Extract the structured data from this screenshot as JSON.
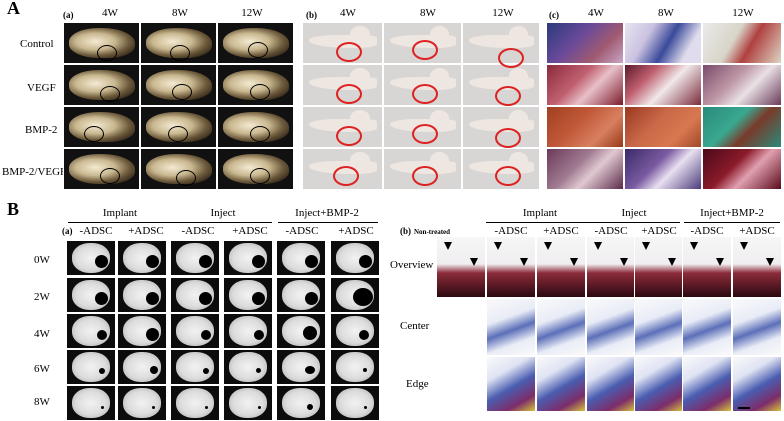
{
  "panel_a": {
    "label": "A",
    "sub_a": "(a)",
    "sub_b": "(b)",
    "sub_c": "(c)",
    "timepoints": [
      "4W",
      "8W",
      "12W"
    ],
    "rows": [
      "Control",
      "VEGF",
      "BMP-2",
      "BMP-2/VEGF"
    ]
  },
  "panel_b": {
    "label": "B",
    "sub_a": "(a)",
    "groups": [
      "Implant",
      "Inject",
      "Inject+BMP-2"
    ],
    "conditions": [
      "-ADSC",
      "+ADSC",
      "-ADSC",
      "+ADSC",
      "-ADSC",
      "+ADSC"
    ],
    "weeks": [
      "0W",
      "2W",
      "4W",
      "6W",
      "8W"
    ],
    "sub_b": "(b)",
    "non_treated": "Non-treated",
    "histo_rows": [
      "Overview",
      "Center",
      "Edge"
    ]
  }
}
